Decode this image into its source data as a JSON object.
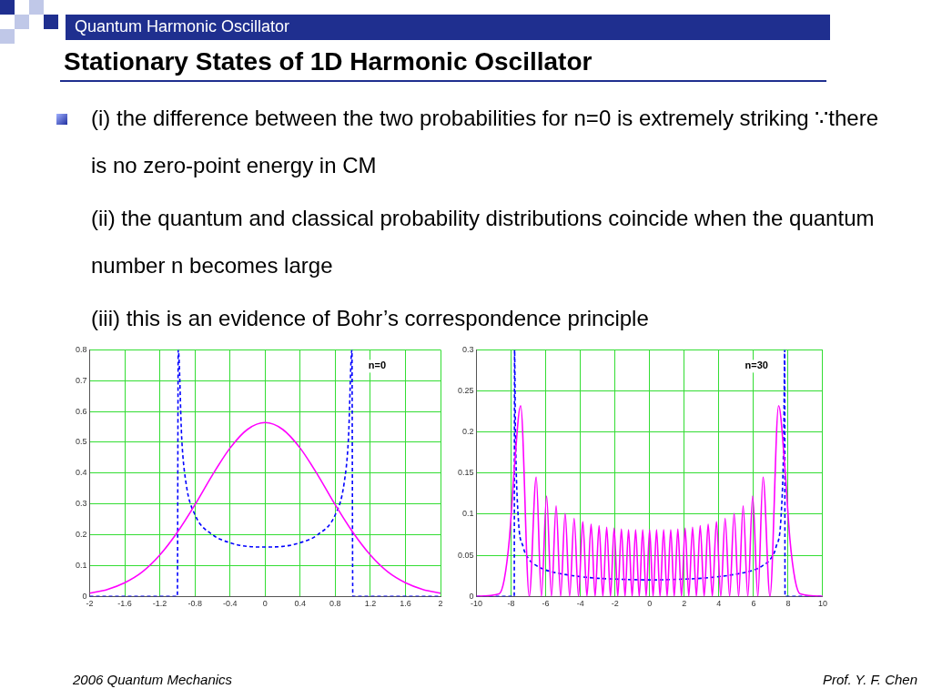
{
  "chart_data": [
    {
      "type": "other",
      "title": "Stationary States of 1D Harmonic Oscillator",
      "subtitle": "Quantum Harmonic Oscillator",
      "annotations": [
        "(i) the difference between the two probabilities for n=0 is extremely striking ∵there is no zero-point energy in CM",
        "(ii) the quantum and classical probability distributions coincide when the quantum number n becomes large",
        "(iii) this is an evidence of Bohr’s correspondence principle",
        "2006 Quantum Mechanics",
        "Prof. Y. F. Chen"
      ]
    },
    {
      "type": "line",
      "annotations": [
        "n=0"
      ],
      "xlim": [
        -2,
        2
      ],
      "xticks": [
        -2,
        -1.6,
        -1.2,
        -0.8,
        -0.4,
        0,
        0.4,
        0.8,
        1.2,
        1.6,
        2
      ],
      "ylim": [
        0,
        0.8
      ],
      "yticks": [
        0,
        0.1,
        0.2,
        0.3,
        0.4,
        0.5,
        0.6,
        0.7,
        0.8
      ],
      "grid": true,
      "marker": "none",
      "series": [
        {
          "color": "#ff00ff",
          "line_style": "solid",
          "x": [
            -2,
            -1.8,
            -1.6,
            -1.4,
            -1.2,
            -1,
            -0.8,
            -0.6,
            -0.4,
            -0.2,
            0,
            0.2,
            0.4,
            0.6,
            0.8,
            1,
            1.2,
            1.4,
            1.6,
            1.8,
            2
          ],
          "values": [
            0.01,
            0.022,
            0.044,
            0.079,
            0.134,
            0.208,
            0.297,
            0.394,
            0.481,
            0.542,
            0.564,
            0.542,
            0.481,
            0.394,
            0.297,
            0.208,
            0.134,
            0.079,
            0.044,
            0.022,
            0.01
          ]
        },
        {
          "color": "#0000ff",
          "line_style": "dashed",
          "x": [
            -2,
            -1,
            -0.99,
            -0.95,
            -0.9,
            -0.8,
            -0.6,
            -0.4,
            -0.2,
            0,
            0.2,
            0.4,
            0.6,
            0.8,
            0.9,
            0.95,
            0.99,
            1,
            2
          ],
          "values": [
            0,
            0,
            0.8,
            0.51,
            0.365,
            0.265,
            0.2,
            0.174,
            0.162,
            0.16,
            0.162,
            0.174,
            0.2,
            0.265,
            0.365,
            0.51,
            0.8,
            0,
            0
          ]
        }
      ]
    },
    {
      "type": "line",
      "annotations": [
        "n=30"
      ],
      "xlim": [
        -10,
        10
      ],
      "xticks": [
        -10,
        -8,
        -6,
        -4,
        -2,
        0,
        2,
        4,
        6,
        8,
        10
      ],
      "ylim": [
        0,
        0.3
      ],
      "yticks": [
        0,
        0.05,
        0.1,
        0.15,
        0.2,
        0.25,
        0.3
      ],
      "grid": true,
      "marker": "none",
      "series": [
        {
          "color": "#ff00ff",
          "line_style": "solid",
          "x": [
            -10,
            -8.7,
            -8.4,
            -8.1,
            -7.8,
            -7.45,
            -6.95,
            -6.55,
            -6.25,
            -5.95,
            -5.67,
            -5.4,
            -5.14,
            -4.88,
            -4.62,
            -4.36,
            -4.11,
            -3.86,
            -3.62,
            -3.38,
            -3.15,
            -2.92,
            -2.7,
            -2.48,
            -2.26,
            -2.05,
            -1.84,
            -1.63,
            -1.42,
            -1.22,
            -1.01,
            -0.81,
            -0.6,
            -0.4,
            -0.2,
            0,
            0.2,
            0.4,
            0.6,
            0.81,
            1.01,
            1.22,
            1.42,
            1.63,
            1.84,
            2.05,
            2.26,
            2.48,
            2.7,
            2.92,
            3.15,
            3.38,
            3.62,
            3.86,
            4.11,
            4.36,
            4.62,
            4.88,
            5.14,
            5.4,
            5.67,
            5.95,
            6.25,
            6.55,
            6.95,
            7.45,
            7.8,
            8.1,
            8.4,
            8.7,
            10
          ],
          "values": [
            0,
            0.003,
            0.02,
            0.07,
            0.16,
            0.232,
            0,
            0.145,
            0,
            0.122,
            0,
            0.11,
            0,
            0.101,
            0,
            0.095,
            0,
            0.091,
            0,
            0.088,
            0,
            0.086,
            0,
            0.084,
            0,
            0.083,
            0,
            0.082,
            0,
            0.081,
            0,
            0.081,
            0,
            0.081,
            0,
            0.081,
            0,
            0.081,
            0,
            0.081,
            0,
            0.081,
            0,
            0.082,
            0,
            0.083,
            0,
            0.084,
            0,
            0.086,
            0,
            0.088,
            0,
            0.091,
            0,
            0.095,
            0,
            0.101,
            0,
            0.11,
            0,
            0.122,
            0,
            0.145,
            0,
            0.232,
            0.16,
            0.07,
            0.02,
            0.003,
            0
          ]
        },
        {
          "color": "#0000ff",
          "line_style": "dashed",
          "x": [
            -10,
            -7.82,
            -7.8,
            -7.75,
            -7.6,
            -7.3,
            -7,
            -6.5,
            -6,
            -5,
            -4,
            -3,
            -2,
            0,
            2,
            3,
            4,
            5,
            6,
            6.5,
            7,
            7.3,
            7.6,
            7.75,
            7.8,
            7.82,
            10
          ],
          "values": [
            0,
            0,
            0.3,
            0.2,
            0.1,
            0.06,
            0.046,
            0.037,
            0.032,
            0.027,
            0.024,
            0.022,
            0.021,
            0.02,
            0.021,
            0.022,
            0.024,
            0.027,
            0.032,
            0.037,
            0.046,
            0.06,
            0.1,
            0.2,
            0.3,
            0,
            0
          ]
        }
      ]
    }
  ]
}
